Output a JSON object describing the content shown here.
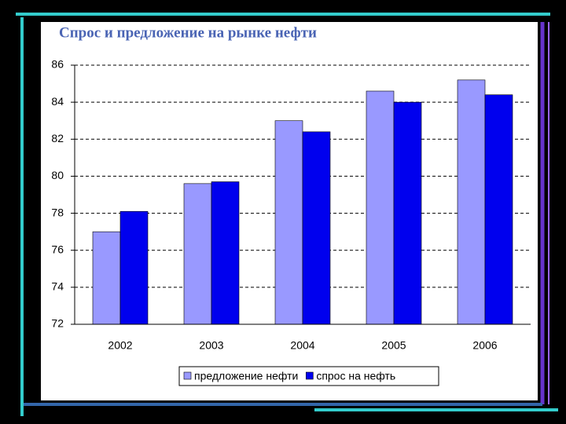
{
  "chart_data": {
    "type": "bar",
    "title": "Спрос и предложение на рынке нефти",
    "categories": [
      "2002",
      "2003",
      "2004",
      "2005",
      "2006"
    ],
    "series": [
      {
        "name": "предложение нефти",
        "color": "#9999ff",
        "values": [
          77.0,
          79.6,
          83.0,
          84.6,
          85.2
        ]
      },
      {
        "name": "спрос на нефть",
        "color": "#0000ee",
        "values": [
          78.1,
          79.7,
          82.4,
          84.0,
          84.4
        ]
      }
    ],
    "ylim": [
      72,
      86
    ],
    "yticks": [
      72,
      74,
      76,
      78,
      80,
      82,
      84,
      86
    ],
    "grid": true,
    "legend": "bottom"
  }
}
